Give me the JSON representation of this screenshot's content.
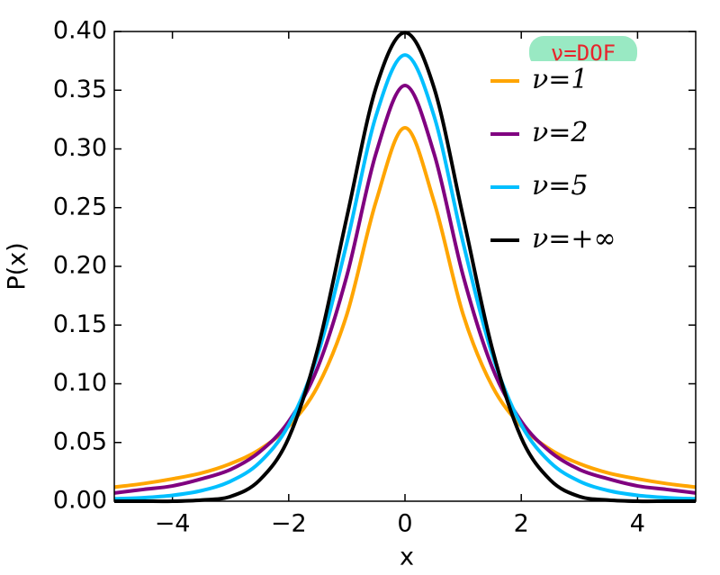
{
  "chart_data": {
    "type": "line",
    "xlabel": "x",
    "ylabel": "P(x)",
    "annotation": "ν=DOF",
    "x": [
      -5,
      -4.5,
      -4,
      -3.5,
      -3,
      -2.5,
      -2,
      -1.5,
      -1,
      -0.5,
      0,
      0.5,
      1,
      1.5,
      2,
      2.5,
      3,
      3.5,
      4,
      4.5,
      5
    ],
    "series": [
      {
        "name": "ν=1",
        "color": "#ffa500",
        "values": [
          0.012,
          0.015,
          0.019,
          0.024,
          0.032,
          0.044,
          0.064,
          0.098,
          0.159,
          0.255,
          0.318,
          0.255,
          0.159,
          0.098,
          0.064,
          0.044,
          0.032,
          0.024,
          0.019,
          0.015,
          0.012
        ]
      },
      {
        "name": "ν=2",
        "color": "#800080",
        "values": [
          0.007,
          0.01,
          0.013,
          0.019,
          0.027,
          0.042,
          0.068,
          0.114,
          0.192,
          0.296,
          0.354,
          0.296,
          0.192,
          0.114,
          0.068,
          0.042,
          0.027,
          0.019,
          0.013,
          0.01,
          0.007
        ]
      },
      {
        "name": "ν=5",
        "color": "#00bfff",
        "values": [
          0.002,
          0.003,
          0.005,
          0.009,
          0.017,
          0.033,
          0.065,
          0.125,
          0.22,
          0.328,
          0.38,
          0.328,
          0.22,
          0.125,
          0.065,
          0.033,
          0.017,
          0.009,
          0.005,
          0.003,
          0.002
        ]
      },
      {
        "name": "ν=+∞",
        "color": "#000000",
        "values": [
          0.0,
          0.0,
          0.0,
          0.001,
          0.004,
          0.018,
          0.054,
          0.13,
          0.242,
          0.352,
          0.399,
          0.352,
          0.242,
          0.13,
          0.054,
          0.018,
          0.004,
          0.001,
          0.0,
          0.0,
          0.0
        ]
      }
    ],
    "xlim": [
      -5,
      5
    ],
    "xticks": [
      {
        "value": -4,
        "label": "−4"
      },
      {
        "value": -2,
        "label": "−2"
      },
      0,
      2,
      4
    ],
    "ylim": [
      0,
      0.4
    ],
    "yticks": [
      {
        "value": 0,
        "label": "0.00"
      },
      {
        "value": 0.05,
        "label": "0.05"
      },
      {
        "value": 0.1,
        "label": "0.10"
      },
      {
        "value": 0.15,
        "label": "0.15"
      },
      {
        "value": 0.2,
        "label": "0.20"
      },
      {
        "value": 0.25,
        "label": "0.25"
      },
      {
        "value": 0.3,
        "label": "0.30"
      },
      {
        "value": 0.35,
        "label": "0.35"
      },
      {
        "value": 0.4,
        "label": "0.40"
      }
    ],
    "legend": "upper right"
  }
}
